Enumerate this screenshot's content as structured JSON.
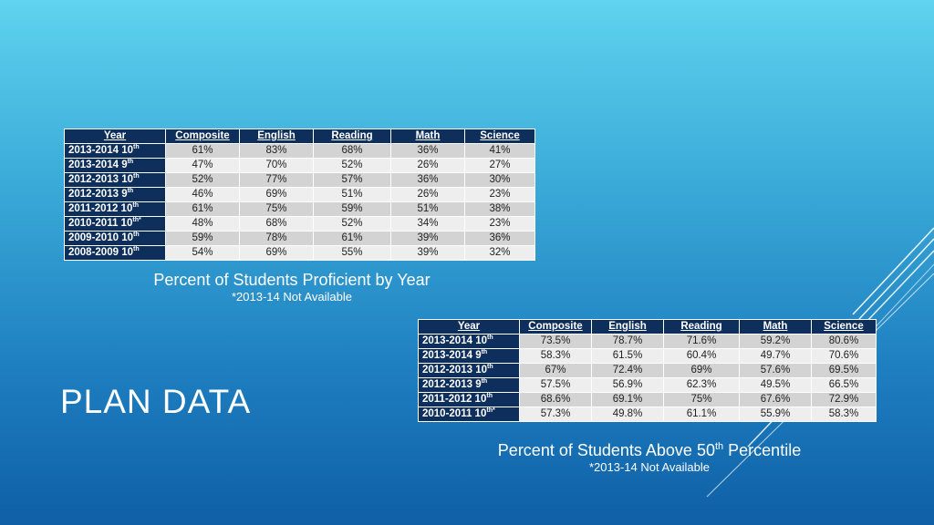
{
  "slide_title": "PLAN DATA",
  "table1": {
    "headers": [
      "Year",
      "Composite",
      "English",
      "Reading",
      "Math",
      "Science"
    ],
    "rows": [
      {
        "year": "2013-2014 10",
        "sup": "th",
        "values": [
          "61%",
          "83%",
          "68%",
          "36%",
          "41%"
        ]
      },
      {
        "year": "2013-2014 9",
        "sup": "th",
        "values": [
          "47%",
          "70%",
          "52%",
          "26%",
          "27%"
        ]
      },
      {
        "year": "2012-2013 10",
        "sup": "th",
        "values": [
          "52%",
          "77%",
          "57%",
          "36%",
          "30%"
        ]
      },
      {
        "year": "2012-2013 9",
        "sup": "th",
        "values": [
          "46%",
          "69%",
          "51%",
          "26%",
          "23%"
        ]
      },
      {
        "year": "2011-2012 10",
        "sup": "th",
        "values": [
          "61%",
          "75%",
          "59%",
          "51%",
          "38%"
        ]
      },
      {
        "year": "2010-2011 10",
        "sup": "th*",
        "values": [
          "48%",
          "68%",
          "52%",
          "34%",
          "23%"
        ]
      },
      {
        "year": "2009-2010 10",
        "sup": "th",
        "values": [
          "59%",
          "78%",
          "61%",
          "39%",
          "36%"
        ]
      },
      {
        "year": "2008-2009 10",
        "sup": "th",
        "values": [
          "54%",
          "69%",
          "55%",
          "39%",
          "32%"
        ]
      }
    ],
    "caption": "Percent of Students Proficient by Year",
    "note": "*2013-14 Not Available"
  },
  "table2": {
    "headers": [
      "Year",
      "Composite",
      "English",
      "Reading",
      "Math",
      "Science"
    ],
    "rows": [
      {
        "year": "2013-2014 10",
        "sup": "th",
        "values": [
          "73.5%",
          "78.7%",
          "71.6%",
          "59.2%",
          "80.6%"
        ]
      },
      {
        "year": "2013-2014 9",
        "sup": "th",
        "values": [
          "58.3%",
          "61.5%",
          "60.4%",
          "49.7%",
          "70.6%"
        ]
      },
      {
        "year": "2012-2013 10",
        "sup": "th",
        "values": [
          "67%",
          "72.4%",
          "69%",
          "57.6%",
          "69.5%"
        ]
      },
      {
        "year": "2012-2013 9",
        "sup": "th",
        "values": [
          "57.5%",
          "56.9%",
          "62.3%",
          "49.5%",
          "66.5%"
        ]
      },
      {
        "year": "2011-2012 10",
        "sup": "th",
        "values": [
          "68.6%",
          "69.1%",
          "75%",
          "67.6%",
          "72.9%"
        ]
      },
      {
        "year": "2010-2011 10",
        "sup": "th*",
        "values": [
          "57.3%",
          "49.8%",
          "61.1%",
          "55.9%",
          "58.3%"
        ]
      }
    ],
    "caption_pre": "Percent of Students Above 50",
    "caption_sup": "th",
    "caption_post": " Percentile",
    "note": "*2013-14 Not Available"
  }
}
